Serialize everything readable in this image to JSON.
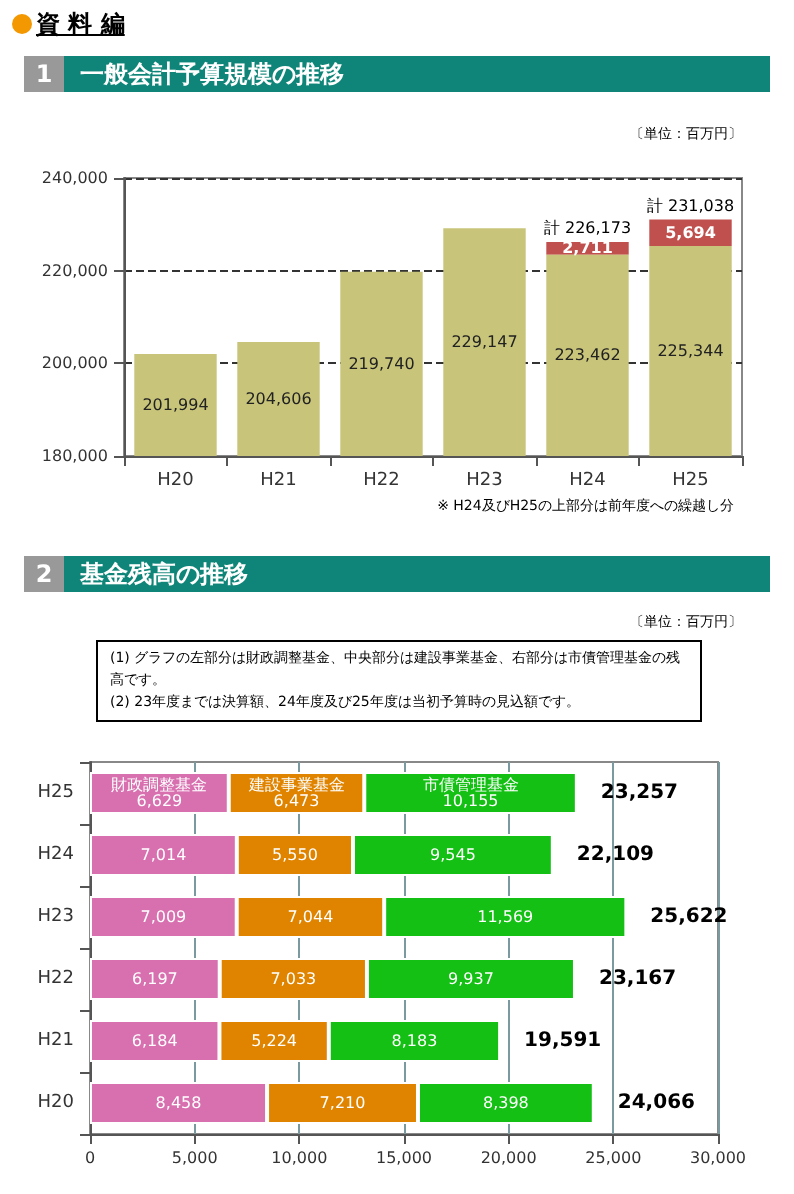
{
  "chart_data": [
    {
      "type": "bar",
      "title": "一般会計予算規模の推移",
      "legend": false,
      "grid": "y",
      "line_style": "dashed",
      "annotations": [
        "資 料 編",
        "1",
        "〔単位：百万円〕",
        "※ H24及びH25の上部分は前年度への繰越し分"
      ],
      "categories": [
        "H20",
        "H21",
        "H22",
        "H23",
        "H24",
        "H25"
      ],
      "series": [
        {
          "color": "#c8c47a",
          "values": [
            201994,
            204606,
            219740,
            229147,
            223462,
            225344
          ],
          "value_labels": [
            "201,994",
            "204,606",
            "219,740",
            "229,147",
            "223,462",
            "225,344"
          ]
        },
        {
          "color": "#c0504d",
          "values": [
            null,
            null,
            null,
            null,
            2711,
            5694
          ],
          "base": [
            null,
            null,
            null,
            null,
            223462,
            225344
          ],
          "value_labels": [
            null,
            null,
            null,
            null,
            "2,711",
            "5,694"
          ]
        }
      ],
      "totals": [
        null,
        null,
        null,
        null,
        "計 226,173",
        "計 231,038"
      ],
      "ylim": [
        180000,
        240000
      ],
      "yticks": [
        {
          "value": 180000,
          "label": "180,000"
        },
        {
          "value": 200000,
          "label": "200,000"
        },
        {
          "value": 220000,
          "label": "220,000"
        },
        {
          "value": 240000,
          "label": "240,000"
        }
      ]
    },
    {
      "type": "bar",
      "title": "基金残高の推移",
      "orientation": "horizontal",
      "stacked": true,
      "legend": false,
      "grid": "x",
      "annotations": [
        "2",
        "〔単位：百万円〕",
        "(1) グラフの左部分は財政調整基金、中央部分は建設事業基金、右部分は市債管理基金の残高です。",
        "(2) 23年度までは決算額、24年度及び25年度は当初予算時の見込額です。"
      ],
      "categories": [
        "H25",
        "H24",
        "H23",
        "H22",
        "H21",
        "H20"
      ],
      "series": [
        {
          "name": "財政調整基金",
          "color": "#d870b0",
          "values": [
            6629,
            7014,
            7009,
            6197,
            6184,
            8458
          ],
          "value_labels": [
            "6,629",
            "7,014",
            "7,009",
            "6,197",
            "6,184",
            "8,458"
          ]
        },
        {
          "name": "建設事業基金",
          "color": "#e08400",
          "values": [
            6473,
            5550,
            7044,
            7033,
            5224,
            7210
          ],
          "value_labels": [
            "6,473",
            "5,550",
            "7,044",
            "7,033",
            "5,224",
            "7,210"
          ]
        },
        {
          "name": "市債管理基金",
          "color": "#14c014",
          "values": [
            10155,
            9545,
            11569,
            9937,
            8183,
            8398
          ],
          "value_labels": [
            "10,155",
            "9,545",
            "11,569",
            "9,937",
            "8,183",
            "8,398"
          ]
        }
      ],
      "totals": [
        "23,257",
        "22,109",
        "25,622",
        "23,167",
        "19,591",
        "24,066"
      ],
      "xlim": [
        0,
        30000
      ],
      "xticks": [
        0,
        {
          "value": 5000,
          "label": "5,000"
        },
        {
          "value": 10000,
          "label": "10,000"
        },
        {
          "value": 15000,
          "label": "15,000"
        },
        {
          "value": 20000,
          "label": "20,000"
        },
        {
          "value": 25000,
          "label": "25,000"
        },
        {
          "value": 30000,
          "label": "30,000"
        }
      ]
    }
  ]
}
